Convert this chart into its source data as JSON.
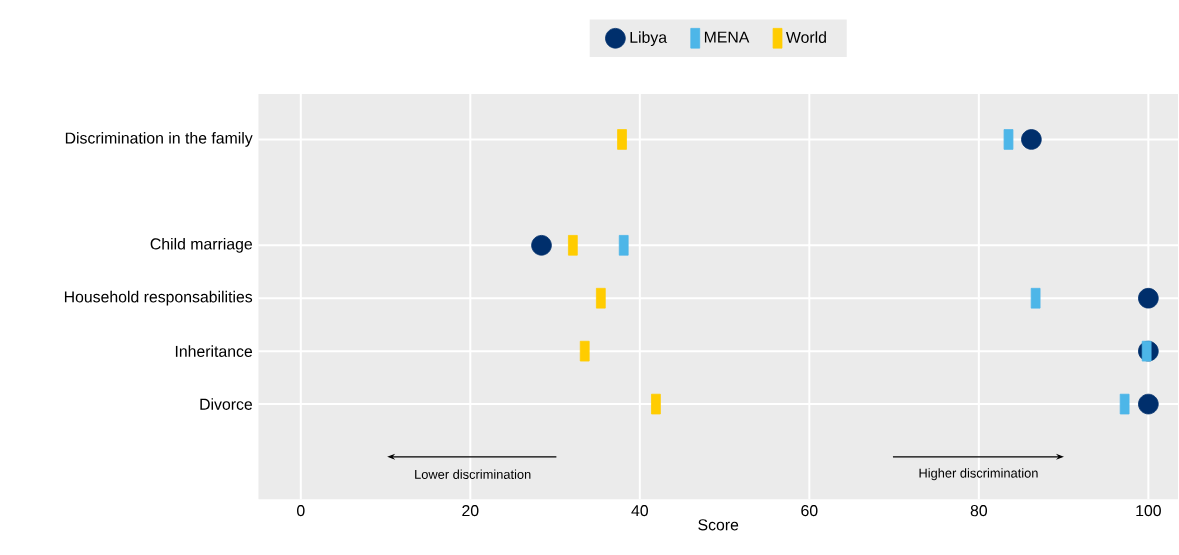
{
  "chart_data": {
    "type": "scatter",
    "orientation": "horizontal",
    "xlabel": "Score",
    "categories": [
      "Discrimination in the family",
      null,
      "Child marriage",
      "Household responsabilities",
      "Inheritance",
      "Divorce"
    ],
    "series": [
      {
        "name": "Libya",
        "color": "#002f6c",
        "marker": "circle",
        "values": [
          86.2,
          null,
          28.4,
          100,
          100,
          100
        ]
      },
      {
        "name": "MENA",
        "color": "#4db6e8",
        "marker": "square",
        "values": [
          83.5,
          null,
          38.1,
          86.7,
          99.8,
          97.2
        ]
      },
      {
        "name": "World",
        "color": "#ffcc00",
        "marker": "square",
        "values": [
          37.9,
          null,
          32.1,
          35.4,
          33.5,
          41.9
        ]
      }
    ],
    "xlim": [
      -5,
      103.5
    ],
    "xticks": [
      0,
      20,
      40,
      60,
      80,
      100
    ],
    "grid": true,
    "legend": "top",
    "annotations": [
      "Lower discrimination",
      "Higher discrimination"
    ]
  }
}
